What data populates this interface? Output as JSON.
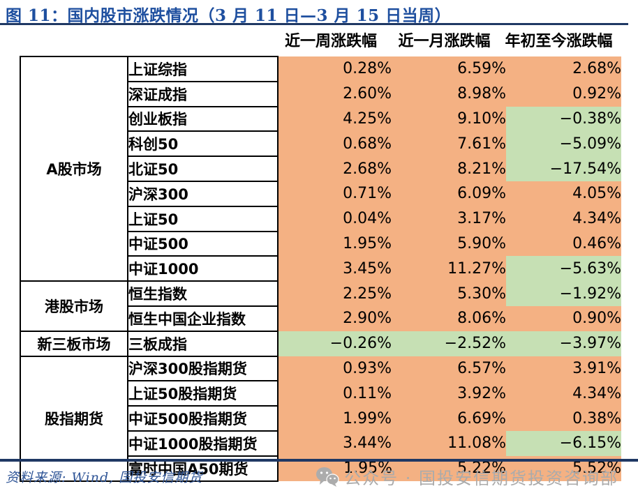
{
  "chart_data": {
    "type": "table",
    "title": "图 11：国内股市涨跌情况（3 月 11 日—3 月 15 日当周）",
    "value_columns": [
      "近一周涨跌幅",
      "近一月涨跌幅",
      "年初至今涨跌幅"
    ],
    "unit": "%",
    "groups": [
      {
        "market": "A股市场",
        "rows": [
          {
            "name": "上证综指",
            "values": [
              0.28,
              6.59,
              2.68
            ]
          },
          {
            "name": "深证成指",
            "values": [
              2.6,
              8.98,
              0.92
            ]
          },
          {
            "name": "创业板指",
            "values": [
              4.25,
              9.1,
              -0.38
            ]
          },
          {
            "name": "科创50",
            "values": [
              0.68,
              7.61,
              -5.09
            ]
          },
          {
            "name": "北证50",
            "values": [
              2.68,
              8.21,
              -17.54
            ]
          },
          {
            "name": "沪深300",
            "values": [
              0.71,
              6.09,
              4.05
            ]
          },
          {
            "name": "上证50",
            "values": [
              0.04,
              3.17,
              4.34
            ]
          },
          {
            "name": "中证500",
            "values": [
              1.95,
              5.9,
              0.46
            ]
          },
          {
            "name": "中证1000",
            "values": [
              3.45,
              11.27,
              -5.63
            ]
          }
        ]
      },
      {
        "market": "港股市场",
        "rows": [
          {
            "name": "恒生指数",
            "values": [
              2.25,
              5.3,
              -1.92
            ]
          },
          {
            "name": "恒生中国企业指数",
            "values": [
              2.9,
              8.06,
              0.9
            ]
          }
        ]
      },
      {
        "market": "新三板市场",
        "rows": [
          {
            "name": "三板成指",
            "values": [
              -0.26,
              -2.52,
              -3.97
            ]
          }
        ]
      },
      {
        "market": "股指期货",
        "rows": [
          {
            "name": "沪深300股指期货",
            "values": [
              0.93,
              6.57,
              3.91
            ]
          },
          {
            "name": "上证50股指期货",
            "values": [
              0.11,
              3.92,
              4.34
            ]
          },
          {
            "name": "中证500股指期货",
            "values": [
              1.99,
              6.69,
              0.38
            ]
          },
          {
            "name": "中证1000股指期货",
            "values": [
              3.44,
              11.08,
              -6.15
            ]
          },
          {
            "name": "富时中国A50期货",
            "values": [
              1.95,
              5.22,
              5.52
            ]
          }
        ]
      }
    ],
    "color_coding": {
      "positive_bg": "#F4B183",
      "negative_bg": "#C6E0B4"
    },
    "layout": {
      "grid": "off",
      "legend": "none"
    }
  },
  "footer": {
    "source": "资料来源: Wind, 国投安信期货",
    "account": "公众号 · 国投安信期货投资咨询部"
  },
  "colors": {
    "title_blue": "#1E4F9F",
    "rule_navy": "#1F3864",
    "source_blue": "#2E5496",
    "footer_gray": "#ABABAB"
  }
}
